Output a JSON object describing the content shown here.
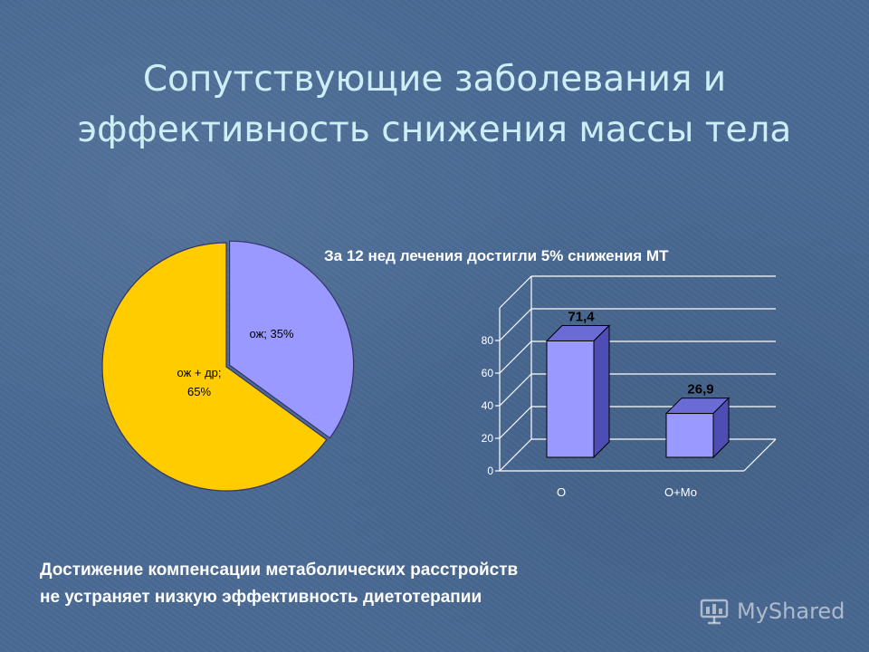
{
  "slide": {
    "title_line1": "Сопутствующие заболевания и",
    "title_line2": "эффективность снижения массы тела",
    "conclusion_line1": "Достижение компенсации метаболических расстройств",
    "conclusion_line2": "не устраняет низкую эффективность диетотерапии",
    "watermark": "MyShared"
  },
  "colors": {
    "background": "#4a6a94",
    "title": "#cdeef6",
    "pie_obesity": "#9999ff",
    "pie_obesity_other": "#ffcc00",
    "bar_front": "#9999ff",
    "bar_top": "#6b6bd6",
    "bar_side": "#4d4db3"
  },
  "chart_data": [
    {
      "type": "pie",
      "slices": [
        {
          "label": "ож; 35%",
          "value": 35,
          "color": "#9999ff"
        },
        {
          "label_line1": "ож + др;",
          "label_line2": "65%",
          "value": 65,
          "color": "#ffcc00"
        }
      ],
      "legend": "none"
    },
    {
      "type": "bar",
      "title": "За 12 нед лечения достигли 5% снижения МТ",
      "categories": [
        "О",
        "О+Мо"
      ],
      "values": [
        71.4,
        26.9
      ],
      "value_labels": [
        "71,4",
        "26,9"
      ],
      "y_ticks": [
        "0",
        "20",
        "40",
        "60",
        "80"
      ],
      "ylim": [
        0,
        100
      ],
      "grid": true,
      "style": "3d"
    }
  ]
}
